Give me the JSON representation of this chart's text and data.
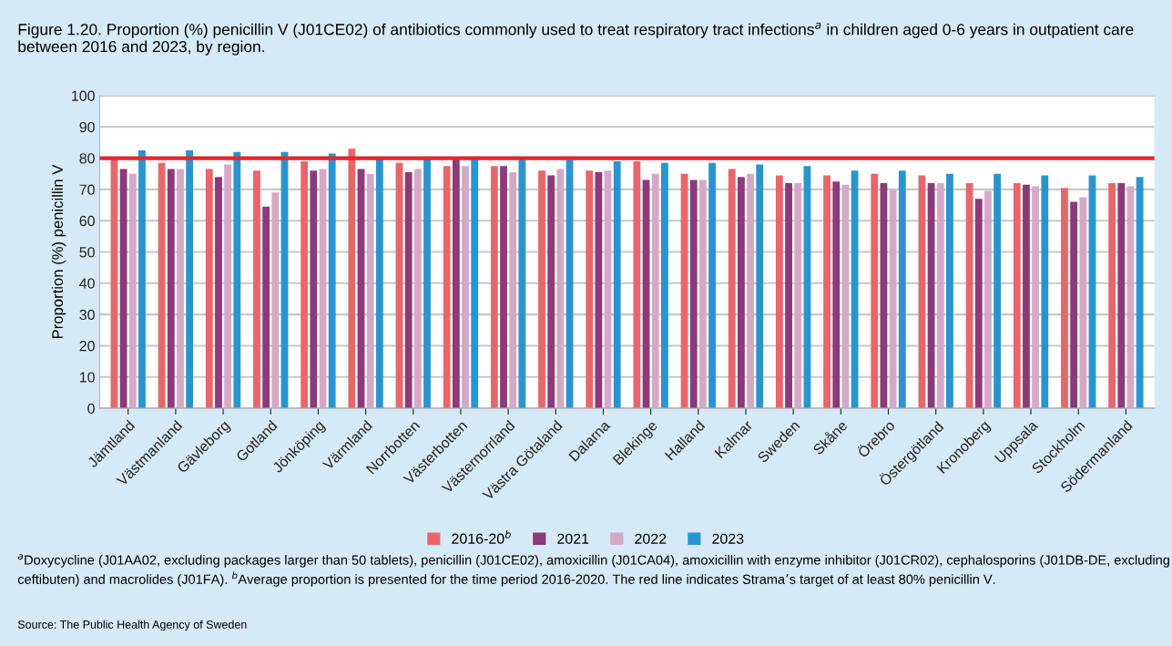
{
  "chart_data": {
    "type": "bar",
    "title": "Figure 1.20. Proportion (%) penicillin V (J01CE02) of antibiotics commonly used to treat respiratory tract infections$^{a}$ in children aged 0-6 years in outpatient care between 2016 and 2023, by region.",
    "ylabel": "Proportion (%) penicillin V",
    "categories": [
      "Jämtland",
      "Västmanland",
      "Gävleborg",
      "Gotland",
      "Jönköping",
      "Värmland",
      "Norrbotten",
      "Västerbotten",
      "Västernorrland",
      "Västra Götaland",
      "Dalarna",
      "Blekinge",
      "Halland",
      "Kalmar",
      "Sweden",
      "Skåne",
      "Örebro",
      "Östergötland",
      "Kronoberg",
      "Uppsala",
      "Stockholm",
      "Södermanland"
    ],
    "series": [
      {
        "name": "2016-20$^{b}$",
        "color": "#e8666b",
        "values": [
          80,
          78.5,
          76.5,
          76,
          79,
          83,
          78.5,
          77.5,
          77.5,
          76,
          76,
          79,
          75,
          76.5,
          74.5,
          74.5,
          75,
          74.5,
          72,
          72,
          70.5,
          72
        ]
      },
      {
        "name": "2021",
        "color": "#8b3a7a",
        "values": [
          76.5,
          76.5,
          74,
          64.5,
          76,
          76.5,
          75.5,
          79.5,
          77.5,
          74.5,
          75.5,
          73,
          73,
          74,
          72,
          72.5,
          72,
          72,
          67,
          71.5,
          66,
          72
        ]
      },
      {
        "name": "2022",
        "color": "#d4a9c6",
        "values": [
          75,
          76.5,
          78,
          69,
          76.5,
          75,
          76.5,
          77.5,
          75.5,
          76.5,
          76,
          75,
          73,
          75,
          72,
          71.5,
          70,
          72,
          69.5,
          71,
          67.5,
          71
        ]
      },
      {
        "name": "2023",
        "color": "#2a94cf",
        "values": [
          82.5,
          82.5,
          82,
          82,
          81.5,
          80,
          80,
          80,
          80,
          79.5,
          79,
          78.5,
          78.5,
          78,
          77.5,
          76,
          76,
          75,
          75,
          74.5,
          74.5,
          74
        ]
      }
    ],
    "ylim": [
      0,
      100
    ],
    "yticks": [
      0,
      10,
      20,
      30,
      40,
      50,
      60,
      70,
      80,
      90,
      100
    ],
    "grid": "y",
    "legend": "bottom",
    "ref_lines": [
      {
        "axis": "y",
        "value": 80,
        "color": "#e3262b",
        "line_style": "solid"
      }
    ],
    "annotations": [
      "$^{a}$Doxycycline (J01AA02, excluding packages larger than 50 tablets), penicillin (J01CE02), amoxicillin (J01CA04), amoxicillin with enzyme inhibitor (J01CR02), cephalosporins (J01DB-DE, excluding ceftibuten) and macrolides (J01FA). $^{b}$Average proportion is presented for the time period 2016-2020. The red line indicates Strama’s target of at least 80% penicillin V.",
      "Source: The Public Health Agency of Sweden"
    ]
  }
}
